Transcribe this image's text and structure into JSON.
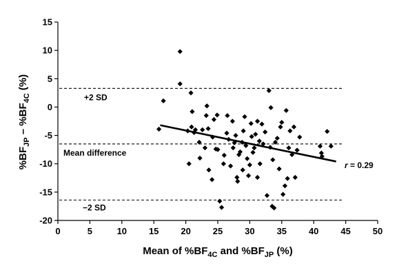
{
  "chart_data": {
    "type": "scatter",
    "title": "",
    "xlabel": {
      "pre": "Mean of %BF",
      "sub1": "4C",
      "mid": " and %BF",
      "sub2": "JP",
      "post": " (%)"
    },
    "ylabel": {
      "pre": "%BF",
      "sub1": "JP",
      "mid": " – %BF",
      "sub2": "4C",
      "post": " (%)"
    },
    "xlim": [
      0,
      50
    ],
    "ylim": [
      -20,
      15
    ],
    "x_ticks": [
      0,
      5,
      10,
      15,
      20,
      25,
      30,
      35,
      40,
      45,
      50
    ],
    "y_ticks": [
      15,
      10,
      5,
      0,
      -5,
      -10,
      -15,
      -20
    ],
    "grid": false,
    "reference_lines": [
      {
        "label": "+2 SD",
        "y": 3.3,
        "style": "dashed"
      },
      {
        "label": "Mean difference",
        "y": -6.5,
        "style": "dashed"
      },
      {
        "label": "−2 SD",
        "y": -16.4,
        "style": "dashed"
      }
    ],
    "regression": {
      "x": [
        16,
        43.5
      ],
      "y": [
        -3.2,
        -9.6
      ]
    },
    "r_label": {
      "symbol": "r",
      "text": " = 0.29"
    },
    "points": [
      [
        15.8,
        -3.9
      ],
      [
        16.5,
        1.1
      ],
      [
        19.1,
        9.8
      ],
      [
        19.1,
        4.1
      ],
      [
        20.3,
        -4.2
      ],
      [
        20.5,
        -10.0
      ],
      [
        20.8,
        2.5
      ],
      [
        20.9,
        -3.5
      ],
      [
        21.0,
        -0.8
      ],
      [
        21.3,
        -4.5
      ],
      [
        21.5,
        -4.0
      ],
      [
        22.1,
        -6.2
      ],
      [
        22.2,
        -9.0
      ],
      [
        22.6,
        -4.0
      ],
      [
        23.0,
        -7.2
      ],
      [
        23.2,
        -1.5
      ],
      [
        23.3,
        0.2
      ],
      [
        23.5,
        -3.8
      ],
      [
        23.6,
        -11.1
      ],
      [
        24.1,
        -12.8
      ],
      [
        24.2,
        -5.3
      ],
      [
        24.4,
        -2.2
      ],
      [
        24.7,
        -7.4
      ],
      [
        24.9,
        -1.4
      ],
      [
        25.0,
        -7.5
      ],
      [
        25.3,
        -16.6
      ],
      [
        25.6,
        -17.7
      ],
      [
        25.9,
        -10.0
      ],
      [
        26.0,
        -8.5
      ],
      [
        26.4,
        -4.6
      ],
      [
        26.5,
        -1.5
      ],
      [
        26.7,
        -5.7
      ],
      [
        27.0,
        -10.4
      ],
      [
        27.3,
        -2.5
      ],
      [
        27.4,
        -7.2
      ],
      [
        27.6,
        -6.3
      ],
      [
        27.8,
        -5.0
      ],
      [
        28.0,
        -12.4
      ],
      [
        28.1,
        -13.1
      ],
      [
        28.3,
        -8.4
      ],
      [
        28.5,
        -7.9
      ],
      [
        28.8,
        -6.2
      ],
      [
        28.9,
        -11.1
      ],
      [
        29.0,
        -4.2
      ],
      [
        29.2,
        -1.7
      ],
      [
        29.4,
        -6.8
      ],
      [
        29.6,
        -9.1
      ],
      [
        29.8,
        -12.1
      ],
      [
        30.0,
        -10.2
      ],
      [
        30.2,
        -2.9
      ],
      [
        30.3,
        -5.2
      ],
      [
        30.5,
        -8.0
      ],
      [
        30.7,
        -7.2
      ],
      [
        30.9,
        -4.8
      ],
      [
        31.2,
        -12.4
      ],
      [
        31.2,
        -2.5
      ],
      [
        31.5,
        -6.0
      ],
      [
        31.6,
        -10.0
      ],
      [
        31.9,
        -3.0
      ],
      [
        32.1,
        -6.5
      ],
      [
        32.4,
        -4.4
      ],
      [
        32.7,
        -15.6
      ],
      [
        33.0,
        2.9
      ],
      [
        33.2,
        -7.1
      ],
      [
        33.3,
        -0.1
      ],
      [
        33.5,
        -17.5
      ],
      [
        33.6,
        -9.3
      ],
      [
        33.8,
        -17.8
      ],
      [
        34.0,
        -6.2
      ],
      [
        34.3,
        -5.5
      ],
      [
        34.6,
        -10.9
      ],
      [
        34.8,
        -3.5
      ],
      [
        35.0,
        -2.7
      ],
      [
        35.2,
        -15.4
      ],
      [
        35.5,
        -13.9
      ],
      [
        35.7,
        -0.6
      ],
      [
        35.9,
        -12.6
      ],
      [
        36.1,
        -7.2
      ],
      [
        36.3,
        -4.2
      ],
      [
        36.6,
        -8.4
      ],
      [
        36.9,
        -3.5
      ],
      [
        37.1,
        -12.4
      ],
      [
        37.4,
        -7.6
      ],
      [
        37.8,
        -5.3
      ],
      [
        41.0,
        -6.9
      ],
      [
        41.2,
        -8.1
      ],
      [
        41.3,
        -8.7
      ],
      [
        42.1,
        -4.3
      ],
      [
        42.7,
        -6.9
      ]
    ]
  }
}
